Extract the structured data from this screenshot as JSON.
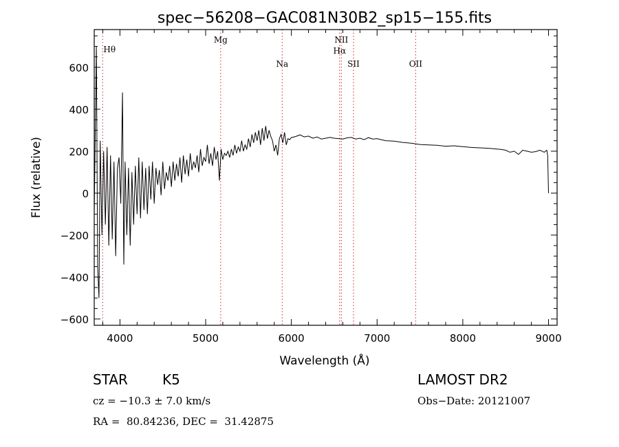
{
  "chart_data": {
    "type": "line",
    "title": "spec−56208−GAC081N30B2_sp15−155.fits",
    "xlabel": "Wavelength (Å)",
    "ylabel": "Flux (relative)",
    "xlim": [
      3700,
      9100
    ],
    "ylim": [
      -630,
      780
    ],
    "x_ticks": [
      4000,
      5000,
      6000,
      7000,
      8000,
      9000
    ],
    "x_tick_labels": [
      "4000",
      "5000",
      "6000",
      "7000",
      "8000",
      "9000"
    ],
    "y_ticks": [
      -600,
      -400,
      -200,
      0,
      200,
      400,
      600
    ],
    "y_tick_labels": [
      "−600",
      "−400",
      "−200",
      "0",
      "200",
      "400",
      "600"
    ],
    "grid": false,
    "line_color": "#000000",
    "marker_color": "#cc2222",
    "emission_lines": [
      {
        "label": "Hθ",
        "wavelength": 3798
      },
      {
        "label": "Mg",
        "wavelength": 5175
      },
      {
        "label": "Na",
        "wavelength": 5893
      },
      {
        "label": "NII",
        "wavelength": 6583
      },
      {
        "label": "Hα",
        "wavelength": 6563
      },
      {
        "label": "SII",
        "wavelength": 6725
      },
      {
        "label": "OII",
        "wavelength": 7450
      }
    ],
    "series": [
      {
        "name": "flux",
        "x": [
          3700,
          3725,
          3740,
          3755,
          3770,
          3790,
          3810,
          3830,
          3850,
          3870,
          3890,
          3910,
          3930,
          3950,
          3970,
          3990,
          4010,
          4030,
          4045,
          4060,
          4080,
          4100,
          4120,
          4140,
          4160,
          4180,
          4200,
          4220,
          4240,
          4260,
          4280,
          4300,
          4320,
          4340,
          4360,
          4380,
          4400,
          4420,
          4440,
          4460,
          4480,
          4500,
          4520,
          4540,
          4560,
          4580,
          4600,
          4620,
          4640,
          4660,
          4680,
          4700,
          4720,
          4740,
          4760,
          4780,
          4800,
          4820,
          4840,
          4860,
          4880,
          4900,
          4920,
          4940,
          4960,
          4980,
          5000,
          5020,
          5040,
          5060,
          5080,
          5100,
          5120,
          5140,
          5160,
          5180,
          5200,
          5220,
          5240,
          5260,
          5280,
          5300,
          5320,
          5340,
          5360,
          5380,
          5400,
          5420,
          5440,
          5460,
          5480,
          5500,
          5520,
          5540,
          5560,
          5580,
          5600,
          5620,
          5640,
          5660,
          5680,
          5700,
          5720,
          5740,
          5760,
          5780,
          5800,
          5820,
          5840,
          5860,
          5880,
          5900,
          5920,
          5940,
          5960,
          5980,
          6000,
          6050,
          6100,
          6150,
          6200,
          6250,
          6300,
          6350,
          6400,
          6450,
          6500,
          6550,
          6600,
          6650,
          6700,
          6750,
          6800,
          6850,
          6900,
          6950,
          7000,
          7100,
          7200,
          7300,
          7400,
          7500,
          7600,
          7700,
          7800,
          7900,
          8000,
          8100,
          8200,
          8300,
          8400,
          8450,
          8500,
          8550,
          8600,
          8650,
          8700,
          8750,
          8800,
          8850,
          8900,
          8950,
          8980,
          8990,
          9000
        ],
        "y": [
          -100,
          700,
          -350,
          -500,
          250,
          -200,
          200,
          -150,
          220,
          -250,
          180,
          -220,
          150,
          -300,
          120,
          170,
          -50,
          480,
          -340,
          150,
          -200,
          120,
          -250,
          100,
          -150,
          130,
          -100,
          170,
          -120,
          150,
          -80,
          120,
          -100,
          130,
          -30,
          150,
          -50,
          120,
          40,
          110,
          -10,
          150,
          20,
          100,
          60,
          130,
          30,
          150,
          60,
          140,
          80,
          170,
          50,
          180,
          90,
          160,
          80,
          190,
          110,
          150,
          120,
          180,
          100,
          210,
          130,
          170,
          150,
          230,
          140,
          190,
          130,
          220,
          160,
          200,
          60,
          210,
          160,
          190,
          180,
          200,
          170,
          210,
          180,
          230,
          190,
          220,
          200,
          250,
          200,
          230,
          210,
          260,
          220,
          280,
          240,
          290,
          250,
          300,
          230,
          310,
          250,
          320,
          260,
          300,
          270,
          250,
          200,
          230,
          180,
          260,
          280,
          240,
          290,
          230,
          260,
          255,
          265,
          270,
          278,
          268,
          272,
          262,
          268,
          258,
          262,
          266,
          262,
          260,
          258,
          264,
          266,
          258,
          262,
          255,
          265,
          258,
          260,
          250,
          248,
          242,
          238,
          232,
          230,
          228,
          224,
          226,
          222,
          218,
          216,
          214,
          210,
          208,
          205,
          195,
          200,
          185,
          205,
          200,
          195,
          198,
          205,
          195,
          205,
          180,
          0
        ]
      }
    ]
  },
  "info": {
    "object_class": "STAR",
    "subclass": "K5",
    "survey": "LAMOST DR2",
    "redshift": "cz = −10.3 ± 7.0 km/s",
    "obs_date": "Obs−Date: 20121007",
    "coords": "RA =  80.84236, DEC =  31.42875"
  }
}
